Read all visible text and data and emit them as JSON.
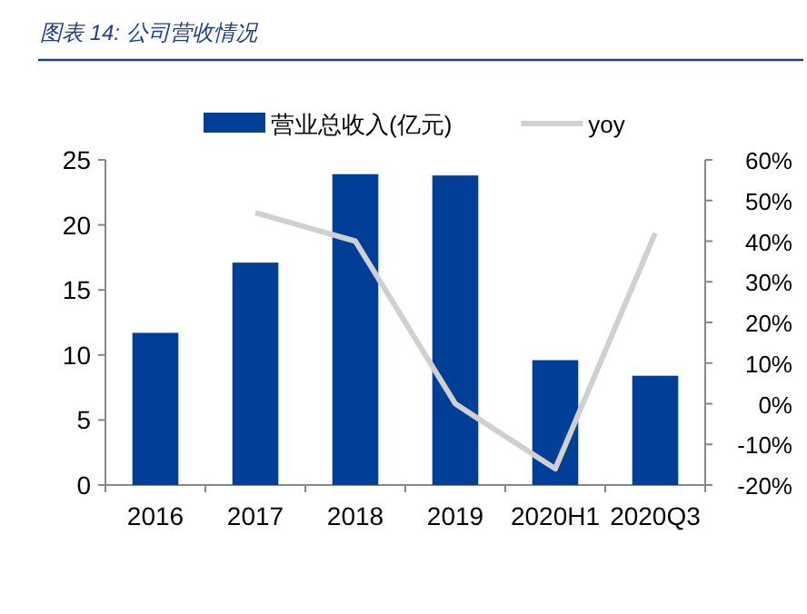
{
  "chart_data": {
    "type": "bar",
    "title": "图表 14: 公司营收情况",
    "categories": [
      "2016",
      "2017",
      "2018",
      "2019",
      "2020H1",
      "2020Q3"
    ],
    "series": [
      {
        "name": "营业总收入(亿元)",
        "color": "#003f98",
        "values": [
          11.7,
          17.1,
          23.9,
          23.8,
          9.6,
          8.4
        ]
      },
      {
        "name": "yoy",
        "type": "line",
        "axis": "y2",
        "color": "#d0d0d0",
        "values": [
          null,
          47,
          40,
          0,
          -16,
          42
        ]
      }
    ],
    "ylim": [
      0,
      25
    ],
    "yticks": [
      0,
      5,
      10,
      15,
      20,
      25
    ],
    "y2lim": [
      -20,
      60
    ],
    "y2ticks": [
      {
        "value": -20,
        "label": "-20%"
      },
      {
        "value": -10,
        "label": "-10%"
      },
      {
        "value": 0,
        "label": "0%"
      },
      {
        "value": 10,
        "label": "10%"
      },
      {
        "value": 20,
        "label": "20%"
      },
      {
        "value": 30,
        "label": "30%"
      },
      {
        "value": 40,
        "label": "40%"
      },
      {
        "value": 50,
        "label": "50%"
      },
      {
        "value": 60,
        "label": "60%"
      }
    ],
    "legend": "top"
  }
}
